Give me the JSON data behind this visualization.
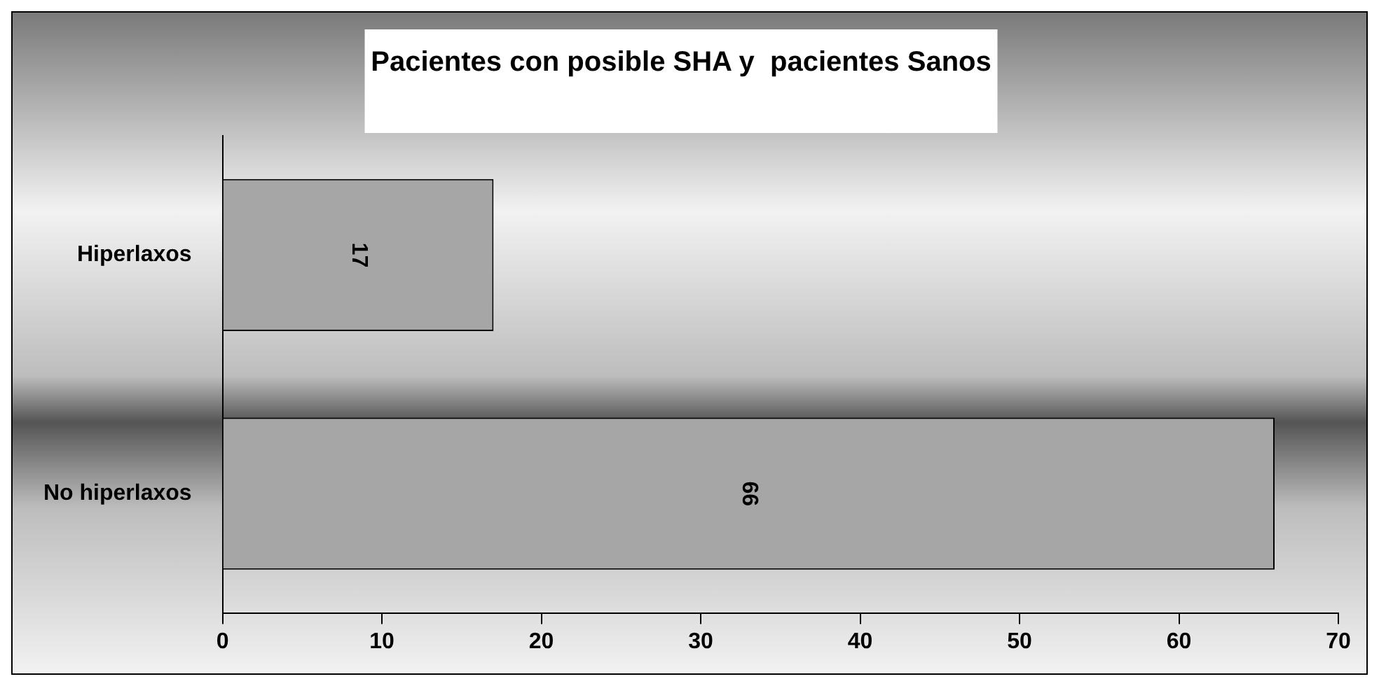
{
  "chart_data": {
    "type": "bar",
    "orientation": "horizontal",
    "title": "Pacientes con posible SHA y  pacientes Sanos",
    "categories": [
      "Hiperlaxos",
      "No hiperlaxos"
    ],
    "values": [
      17,
      66
    ],
    "color": "#a6a6a6",
    "xlim": [
      0,
      70
    ],
    "xticks": [
      0,
      10,
      20,
      30,
      40,
      50,
      60,
      70
    ],
    "data_labels": true,
    "grid": false,
    "legend": false
  }
}
